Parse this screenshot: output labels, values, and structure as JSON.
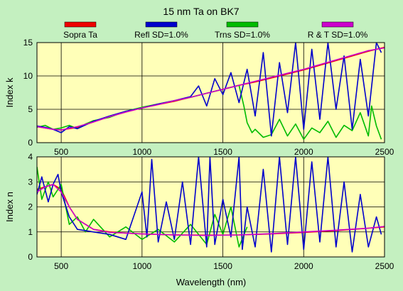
{
  "chart_data": {
    "type": "line",
    "title": "15 nm Ta on BK7",
    "xlabel": "Wavelength (nm)",
    "xlim": [
      350,
      2500
    ],
    "xticks": [
      500,
      1000,
      1500,
      2000,
      2500
    ],
    "legend_position": "top",
    "series": [
      {
        "name": "Sopra Ta",
        "color": "#ee0000"
      },
      {
        "name": "Refl SD=1.0%",
        "color": "#0000cc"
      },
      {
        "name": "Trns SD=1.0%",
        "color": "#00bb00"
      },
      {
        "name": "R & T SD=1.0%",
        "color": "#cc00cc"
      }
    ],
    "panels": [
      {
        "name": "k",
        "ylabel": "Index k",
        "ylim": [
          0,
          15
        ],
        "yticks": [
          0,
          5,
          10,
          15
        ],
        "grid": true,
        "series_values": {
          "Sopra Ta": {
            "x": [
              350,
              400,
              450,
              500,
              600,
              700,
              800,
              900,
              1000,
              1100,
              1200,
              1300,
              1400,
              1500,
              1600,
              1700,
              1800,
              1900,
              2000,
              2100,
              2200,
              2300,
              2400,
              2500
            ],
            "y": [
              2.4,
              2.2,
              2.0,
              1.9,
              2.3,
              3.1,
              3.9,
              4.6,
              5.2,
              5.7,
              6.2,
              6.8,
              7.4,
              8.0,
              8.6,
              9.1,
              9.7,
              10.3,
              10.9,
              11.6,
              12.3,
              13.0,
              13.7,
              14.3
            ]
          },
          "Refl SD=1.0%": {
            "x": [
              350,
              400,
              450,
              500,
              550,
              600,
              700,
              800,
              900,
              1000,
              1100,
              1200,
              1300,
              1350,
              1400,
              1450,
              1500,
              1550,
              1600,
              1650,
              1700,
              1750,
              1800,
              1850,
              1900,
              1950,
              2000,
              2050,
              2100,
              2150,
              2200,
              2250,
              2300,
              2350,
              2400,
              2450,
              2480
            ],
            "y": [
              2.5,
              2.3,
              2.0,
              1.5,
              2.4,
              2.1,
              3.2,
              4.0,
              4.7,
              5.2,
              5.8,
              6.3,
              6.9,
              8.5,
              5.5,
              9.6,
              7.2,
              10.5,
              6.0,
              11.0,
              4.0,
              13.5,
              1.0,
              12.0,
              4.5,
              15.0,
              2.0,
              14.0,
              3.5,
              15.0,
              5.0,
              13.0,
              2.0,
              12.5,
              4.0,
              15.0,
              13.5
            ]
          },
          "Trns SD=1.0%": {
            "x": [
              350,
              400,
              450,
              500,
              550,
              600,
              650,
              700,
              800,
              900,
              1000,
              1100,
              1200,
              1300,
              1400,
              1500,
              1600,
              1630,
              1650,
              1680,
              1700,
              1750,
              1800,
              1850,
              1900,
              1950,
              2000,
              2050,
              2100,
              2150,
              2200,
              2250,
              2300,
              2350,
              2400,
              2420,
              2450,
              2480
            ],
            "y": [
              2.3,
              2.6,
              2.0,
              2.2,
              2.6,
              2.1,
              2.8,
              3.3,
              3.8,
              4.7,
              5.3,
              5.8,
              6.3,
              6.8,
              7.4,
              8.0,
              8.6,
              5.5,
              3.0,
              1.5,
              2.0,
              0.8,
              1.2,
              3.5,
              1.0,
              2.8,
              0.5,
              2.2,
              1.5,
              3.2,
              0.8,
              2.6,
              1.8,
              4.5,
              1.0,
              5.5,
              2.5,
              0.5
            ]
          },
          "R & T SD=1.0%": {
            "x": [
              350,
              400,
              450,
              500,
              600,
              700,
              800,
              900,
              1000,
              1100,
              1200,
              1300,
              1400,
              1500,
              1600,
              1700,
              1800,
              1900,
              2000,
              2100,
              2200,
              2300,
              2400,
              2500
            ],
            "y": [
              2.4,
              2.2,
              2.0,
              1.9,
              2.4,
              3.1,
              3.9,
              4.6,
              5.2,
              5.7,
              6.3,
              6.8,
              7.4,
              8.0,
              8.6,
              9.2,
              9.8,
              10.4,
              11.0,
              11.7,
              12.4,
              13.1,
              13.8,
              14.2
            ]
          }
        }
      },
      {
        "name": "n",
        "ylabel": "Index n",
        "ylim": [
          0,
          4
        ],
        "yticks": [
          0,
          1,
          2,
          3,
          4
        ],
        "grid": true,
        "series_values": {
          "Sopra Ta": {
            "x": [
              350,
              400,
              450,
              500,
              550,
              600,
              700,
              800,
              900,
              1000,
              1200,
              1400,
              1600,
              1800,
              2000,
              2200,
              2400,
              2500
            ],
            "y": [
              2.7,
              2.8,
              2.9,
              2.7,
              2.0,
              1.5,
              1.1,
              1.0,
              0.95,
              0.92,
              0.88,
              0.87,
              0.88,
              0.92,
              0.98,
              1.05,
              1.15,
              1.2
            ]
          },
          "Refl SD=1.0%": {
            "x": [
              350,
              380,
              420,
              450,
              480,
              500,
              550,
              600,
              700,
              800,
              900,
              1000,
              1030,
              1060,
              1100,
              1150,
              1200,
              1250,
              1300,
              1350,
              1400,
              1420,
              1450,
              1500,
              1550,
              1600,
              1620,
              1650,
              1700,
              1750,
              1800,
              1850,
              1900,
              1950,
              2000,
              2050,
              2100,
              2150,
              2200,
              2250,
              2300,
              2350,
              2400,
              2450,
              2480
            ],
            "y": [
              2.5,
              3.2,
              2.2,
              2.9,
              3.3,
              2.6,
              1.6,
              1.1,
              1.0,
              0.9,
              0.7,
              2.6,
              0.8,
              3.9,
              0.6,
              2.2,
              0.7,
              3.0,
              0.5,
              4.0,
              0.4,
              4.0,
              0.5,
              2.3,
              0.8,
              4.0,
              0.3,
              2.0,
              0.4,
              3.5,
              0.2,
              4.0,
              0.5,
              4.0,
              0.3,
              3.8,
              0.6,
              4.0,
              0.4,
              3.0,
              0.2,
              2.5,
              0.4,
              1.6,
              0.9
            ]
          },
          "Trns SD=1.0%": {
            "x": [
              350,
              380,
              420,
              450,
              500,
              550,
              600,
              650,
              700,
              800,
              900,
              1000,
              1100,
              1200,
              1300,
              1400,
              1450,
              1500,
              1550,
              1600,
              1650
            ],
            "y": [
              3.6,
              2.3,
              3.0,
              2.4,
              2.9,
              1.3,
              1.6,
              1.0,
              1.5,
              0.8,
              1.2,
              0.7,
              1.1,
              0.6,
              1.3,
              0.5,
              1.7,
              0.9,
              2.0,
              0.4,
              1.2
            ]
          },
          "R & T SD=1.0%": {
            "x": [
              350,
              400,
              450,
              500,
              550,
              600,
              700,
              800,
              900,
              1000,
              1200,
              1400,
              1600,
              1800,
              2000,
              2200,
              2400,
              2500
            ],
            "y": [
              2.6,
              2.8,
              2.9,
              2.6,
              2.0,
              1.5,
              1.1,
              0.98,
              0.95,
              0.92,
              0.88,
              0.86,
              0.88,
              0.93,
              1.0,
              1.07,
              1.15,
              1.22
            ]
          }
        }
      }
    ]
  }
}
